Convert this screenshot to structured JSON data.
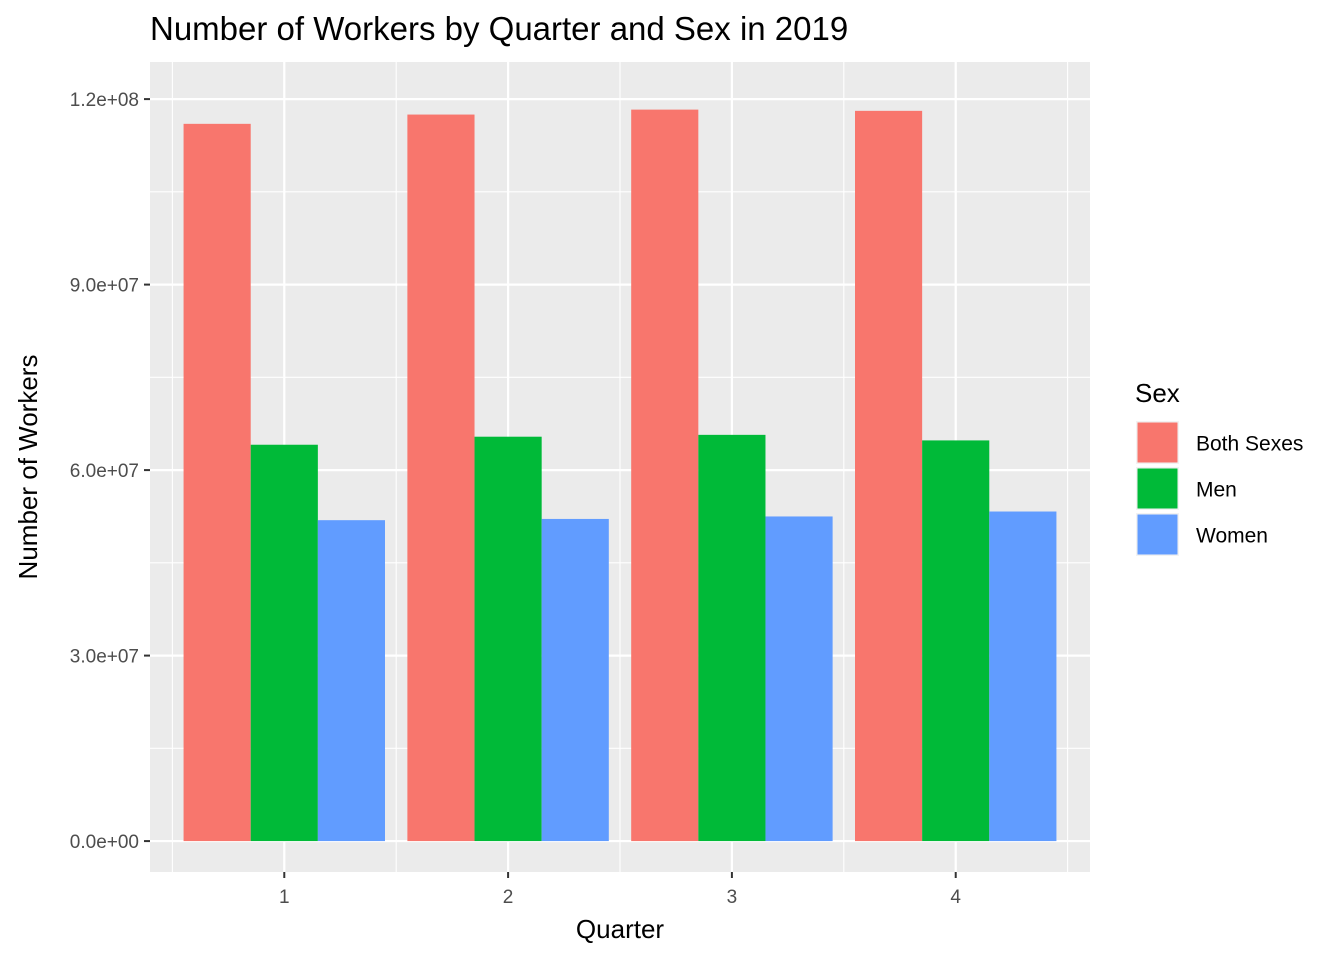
{
  "chart_data": {
    "type": "bar",
    "title": "Number of Workers by Quarter and Sex in 2019",
    "xlabel": "Quarter",
    "ylabel": "Number of Workers",
    "categories": [
      "1",
      "2",
      "3",
      "4"
    ],
    "ylim": [
      -5000000,
      126000000
    ],
    "yticks": [
      0,
      30000000,
      60000000,
      90000000,
      120000000
    ],
    "ytick_labels": [
      "0.0e+00",
      "3.0e+07",
      "6.0e+07",
      "9.0e+07",
      "1.2e+08"
    ],
    "series": [
      {
        "name": "Both Sexes",
        "color": "#F8766D",
        "values": [
          116000000,
          117500000,
          118300000,
          118100000
        ]
      },
      {
        "name": "Men",
        "color": "#00BA38",
        "values": [
          64100000,
          65400000,
          65700000,
          64800000
        ]
      },
      {
        "name": "Women",
        "color": "#619CFF",
        "values": [
          51900000,
          52100000,
          52500000,
          53300000
        ]
      }
    ],
    "legend": {
      "title": "Sex",
      "position": "right"
    },
    "grid": true,
    "panel_background": "#EBEBEB"
  }
}
